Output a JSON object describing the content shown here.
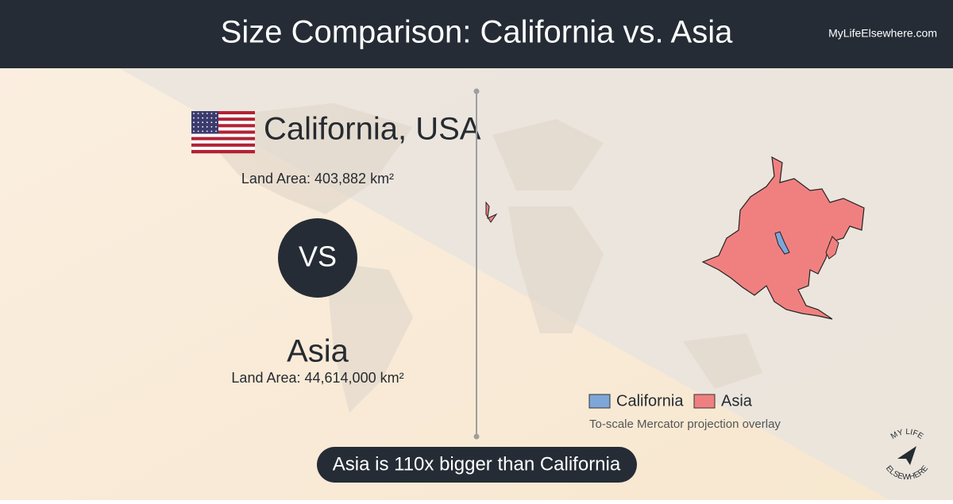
{
  "header": {
    "title": "Size Comparison: California vs. Asia",
    "site": "MyLifeElsewhere.com"
  },
  "first_place": {
    "name": "California, USA",
    "land_area": "Land Area: 403,882 km²"
  },
  "versus": "VS",
  "second_place": {
    "name": "Asia",
    "land_area": "Land Area: 44,614,000 km²"
  },
  "legend": {
    "items": [
      "California",
      "Asia"
    ],
    "note": "To-scale Mercator projection overlay"
  },
  "conclusion": "Asia is 110x bigger than California",
  "logo": {
    "top": "MY LIFE",
    "bottom": "ELSEWHERE"
  }
}
